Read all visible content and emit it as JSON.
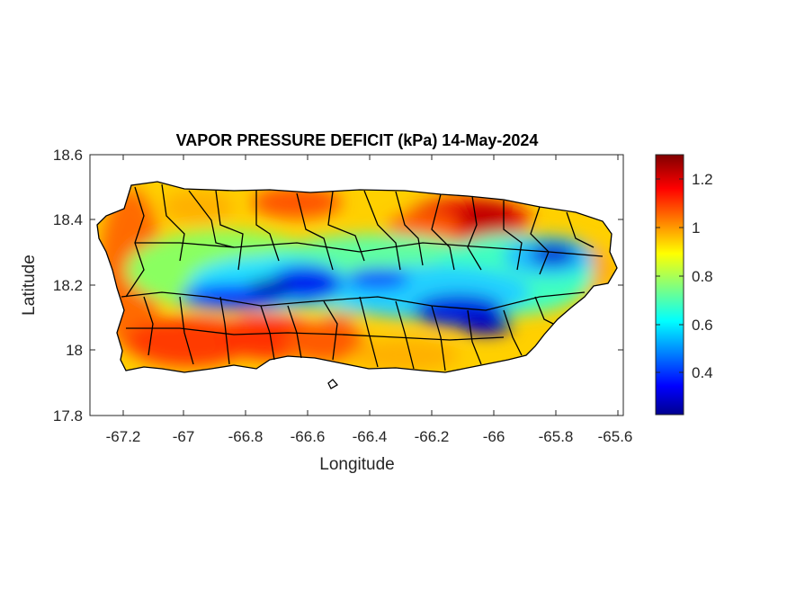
{
  "figure": {
    "title": "VAPOR PRESSURE DEFICIT (kPa) 14-May-2024",
    "xlabel": "Longitude",
    "ylabel": "Latitude"
  },
  "map": {
    "region": "Puerto Rico",
    "xlim": [
      -67.3,
      -65.6
    ],
    "ylim": [
      17.8,
      18.6
    ],
    "xticks": [
      "-67.2",
      "-67",
      "-66.8",
      "-66.6",
      "-66.4",
      "-66.2",
      "-66",
      "-65.8",
      "-65.6"
    ],
    "yticks": [
      "18.6",
      "18.4",
      "18.2",
      "18"
    ],
    "ytick_bottom": "17.8",
    "colormap": "jet",
    "colorbar": {
      "min": 0.22,
      "max": 1.32,
      "ticks": [
        "1.2",
        "1",
        "0.8",
        "0.6",
        "0.4"
      ],
      "colors": [
        "#00008f",
        "#0000ff",
        "#00ffff",
        "#ffff00",
        "#ff0000",
        "#800000"
      ]
    },
    "grid": false
  }
}
